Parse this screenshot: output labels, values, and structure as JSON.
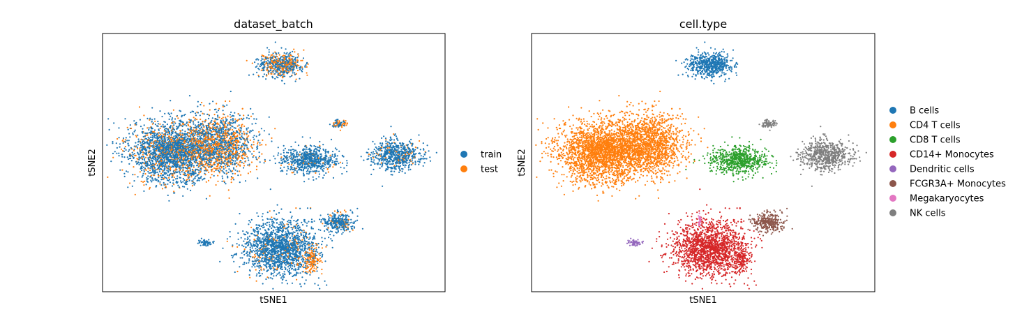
{
  "chart_data": [
    {
      "type": "scatter",
      "title": "dataset_batch",
      "xlabel": "tSNE1",
      "ylabel": "tSNE2",
      "grid": false,
      "legend_placement": "right",
      "series": [
        {
          "name": "train",
          "color": "#1f77b4"
        },
        {
          "name": "test",
          "color": "#ff7f0e"
        }
      ],
      "clusters": [
        {
          "cx": 0.52,
          "cy": 0.88,
          "rx": 0.07,
          "ry": 0.05,
          "n": 600,
          "mix": [
            0.62,
            0.38
          ]
        },
        {
          "cx": 0.2,
          "cy": 0.54,
          "rx": 0.14,
          "ry": 0.13,
          "n": 2200,
          "mix": [
            0.8,
            0.2
          ]
        },
        {
          "cx": 0.34,
          "cy": 0.57,
          "rx": 0.12,
          "ry": 0.13,
          "n": 1600,
          "mix": [
            0.55,
            0.45
          ]
        },
        {
          "cx": 0.6,
          "cy": 0.51,
          "rx": 0.09,
          "ry": 0.06,
          "n": 700,
          "mix": [
            0.92,
            0.08
          ]
        },
        {
          "cx": 0.86,
          "cy": 0.53,
          "rx": 0.08,
          "ry": 0.06,
          "n": 650,
          "mix": [
            0.9,
            0.1
          ]
        },
        {
          "cx": 0.69,
          "cy": 0.65,
          "rx": 0.025,
          "ry": 0.02,
          "n": 80,
          "mix": [
            0.5,
            0.5
          ]
        },
        {
          "cx": 0.52,
          "cy": 0.17,
          "rx": 0.12,
          "ry": 0.12,
          "n": 1700,
          "mix": [
            0.92,
            0.08
          ]
        },
        {
          "cx": 0.69,
          "cy": 0.27,
          "rx": 0.05,
          "ry": 0.04,
          "n": 300,
          "mix": [
            0.88,
            0.12
          ]
        },
        {
          "cx": 0.61,
          "cy": 0.12,
          "rx": 0.03,
          "ry": 0.06,
          "n": 150,
          "mix": [
            0.15,
            0.85
          ]
        },
        {
          "cx": 0.3,
          "cy": 0.19,
          "rx": 0.02,
          "ry": 0.012,
          "n": 60,
          "mix": [
            1,
            0
          ]
        }
      ]
    },
    {
      "type": "scatter",
      "title": "cell.type",
      "xlabel": "tSNE1",
      "ylabel": "tSNE2",
      "grid": false,
      "legend_placement": "right",
      "series": [
        {
          "name": "B cells",
          "color": "#1f77b4"
        },
        {
          "name": "CD4 T cells",
          "color": "#ff7f0e"
        },
        {
          "name": "CD8 T cells",
          "color": "#2ca02c"
        },
        {
          "name": "CD14+ Monocytes",
          "color": "#d62728"
        },
        {
          "name": "Dendritic cells",
          "color": "#9467bd"
        },
        {
          "name": "FCGR3A+ Monocytes",
          "color": "#8c564b"
        },
        {
          "name": "Megakaryocytes",
          "color": "#e377c2"
        },
        {
          "name": "NK cells",
          "color": "#7f7f7f"
        }
      ],
      "clusters": [
        {
          "cx": 0.52,
          "cy": 0.88,
          "rx": 0.07,
          "ry": 0.05,
          "n": 600,
          "series": 0
        },
        {
          "cx": 0.2,
          "cy": 0.54,
          "rx": 0.14,
          "ry": 0.13,
          "n": 2200,
          "series": 1
        },
        {
          "cx": 0.34,
          "cy": 0.57,
          "rx": 0.12,
          "ry": 0.13,
          "n": 1600,
          "series": 1
        },
        {
          "cx": 0.6,
          "cy": 0.51,
          "rx": 0.09,
          "ry": 0.06,
          "n": 700,
          "series": 2
        },
        {
          "cx": 0.86,
          "cy": 0.53,
          "rx": 0.08,
          "ry": 0.06,
          "n": 650,
          "series": 7
        },
        {
          "cx": 0.69,
          "cy": 0.65,
          "rx": 0.025,
          "ry": 0.02,
          "n": 80,
          "series": 7
        },
        {
          "cx": 0.52,
          "cy": 0.17,
          "rx": 0.12,
          "ry": 0.12,
          "n": 1700,
          "series": 3
        },
        {
          "cx": 0.69,
          "cy": 0.27,
          "rx": 0.05,
          "ry": 0.04,
          "n": 300,
          "series": 5
        },
        {
          "cx": 0.61,
          "cy": 0.12,
          "rx": 0.03,
          "ry": 0.06,
          "n": 150,
          "series": 3
        },
        {
          "cx": 0.3,
          "cy": 0.19,
          "rx": 0.02,
          "ry": 0.012,
          "n": 60,
          "series": 4
        },
        {
          "cx": 0.49,
          "cy": 0.28,
          "rx": 0.004,
          "ry": 0.025,
          "n": 30,
          "series": 6
        }
      ]
    }
  ]
}
